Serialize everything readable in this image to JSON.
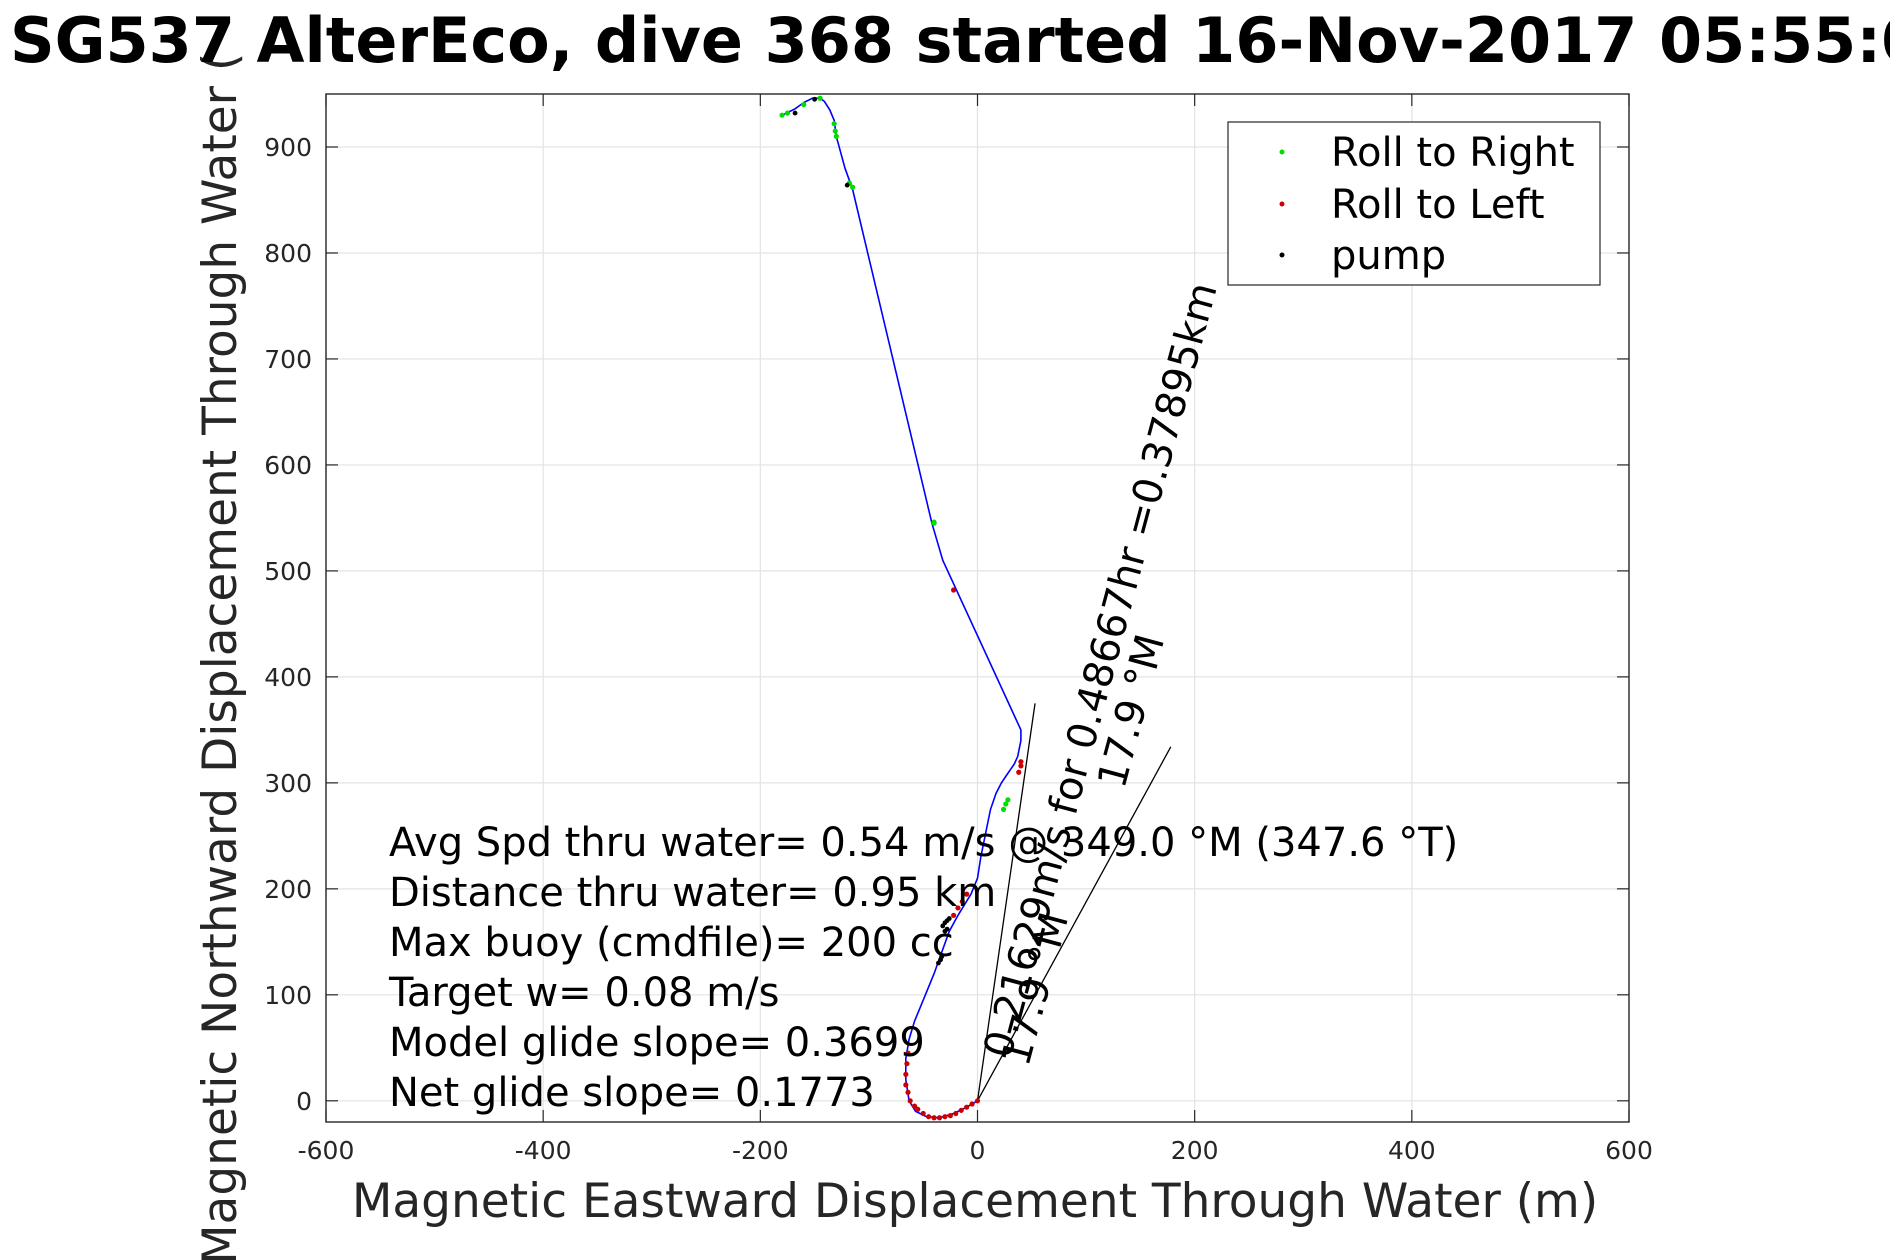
{
  "title": "SG537 AlterEco, dive 368 started 16-Nov-2017 05:55:0",
  "chart_data": {
    "type": "line",
    "xlabel": "Magnetic Eastward Displacement Through Water (m)",
    "ylabel": "Magnetic Northward Displacement Through Water (",
    "xlim": [
      -600,
      600
    ],
    "ylim": [
      -20,
      950
    ],
    "xticks": [
      "-600",
      "-400",
      "-200",
      "0",
      "200",
      "400",
      "600"
    ],
    "yticks": [
      "0",
      "100",
      "200",
      "300",
      "400",
      "500",
      "600",
      "700",
      "800",
      "900"
    ],
    "grid": true,
    "legend_position": "top-right",
    "legend": [
      "Roll to Right",
      "Roll to Left",
      "pump"
    ],
    "colors": {
      "track": "#0000ff",
      "roll_right": "#00dd00",
      "roll_left": "#cc0000",
      "pump": "#000000",
      "overlap": "#a0207a"
    },
    "track": {
      "x": [
        0,
        -5,
        -12,
        -22,
        -35,
        -47,
        -57,
        -63,
        -66,
        -66,
        -63,
        -58,
        -48,
        -40,
        -33,
        -26,
        -18,
        -12,
        -6,
        0,
        3,
        7,
        12,
        17,
        22,
        26,
        30,
        34,
        37,
        40,
        40,
        -32,
        -42,
        -115,
        -122,
        -130,
        -132,
        -136,
        -141,
        -145,
        -152,
        -160,
        -168,
        -176,
        -180
      ],
      "y": [
        0,
        -3,
        -7,
        -12,
        -16,
        -15,
        -10,
        0,
        20,
        40,
        58,
        75,
        100,
        120,
        140,
        160,
        175,
        185,
        195,
        210,
        230,
        250,
        275,
        290,
        300,
        306,
        312,
        318,
        325,
        340,
        350,
        510,
        545,
        860,
        880,
        910,
        925,
        935,
        943,
        946,
        946,
        942,
        936,
        932,
        930
      ]
    },
    "roll_left_points": {
      "x": [
        0,
        -5,
        -10,
        -15,
        -20,
        -25,
        -30,
        -35,
        -40,
        -45,
        -50,
        -55,
        -58,
        -62,
        -64,
        -66,
        -66,
        -65,
        -64,
        -22,
        -18,
        -14,
        -10,
        38,
        40,
        40,
        -22
      ],
      "y": [
        0,
        -3,
        -6,
        -9,
        -12,
        -14,
        -15,
        -16,
        -16,
        -15,
        -12,
        -8,
        -5,
        0,
        8,
        15,
        25,
        35,
        45,
        175,
        182,
        188,
        195,
        310,
        316,
        320,
        482
      ]
    },
    "roll_right_points": {
      "x": [
        -40,
        24,
        26,
        28,
        -40,
        -115,
        -118,
        -130,
        -131,
        -132,
        -145,
        -160,
        -175,
        -180,
        -175
      ],
      "y": [
        545,
        275,
        280,
        284,
        546,
        862,
        866,
        910,
        915,
        922,
        946,
        940,
        932,
        930,
        932
      ]
    },
    "pump_points": {
      "x": [
        -32,
        -30,
        -28,
        -26,
        -30,
        -28,
        -36,
        -34,
        -33,
        -120,
        -150,
        -168
      ],
      "y": [
        165,
        168,
        170,
        172,
        160,
        162,
        130,
        133,
        136,
        864,
        945,
        932
      ]
    },
    "heading_lines": [
      {
        "x": [
          0,
          53
        ],
        "y": [
          0,
          375
        ]
      },
      {
        "x": [
          0,
          178
        ],
        "y": [
          0,
          334
        ]
      }
    ],
    "annotations": [
      "Avg Spd thru water=  0.54 m/s @ 349.0 °M (347.6 °T)",
      "Distance thru water=  0.95 km",
      "Max buoy (cmdfile)= 200 cc",
      "Target w= 0.08 m/s",
      "Model glide slope= 0.3699",
      "Net glide slope= 0.1773"
    ],
    "rotated_labels": [
      "0.21629m/s for 0.48667hr =0.37895km",
      "17.9 °M",
      "17.9 °M"
    ]
  }
}
